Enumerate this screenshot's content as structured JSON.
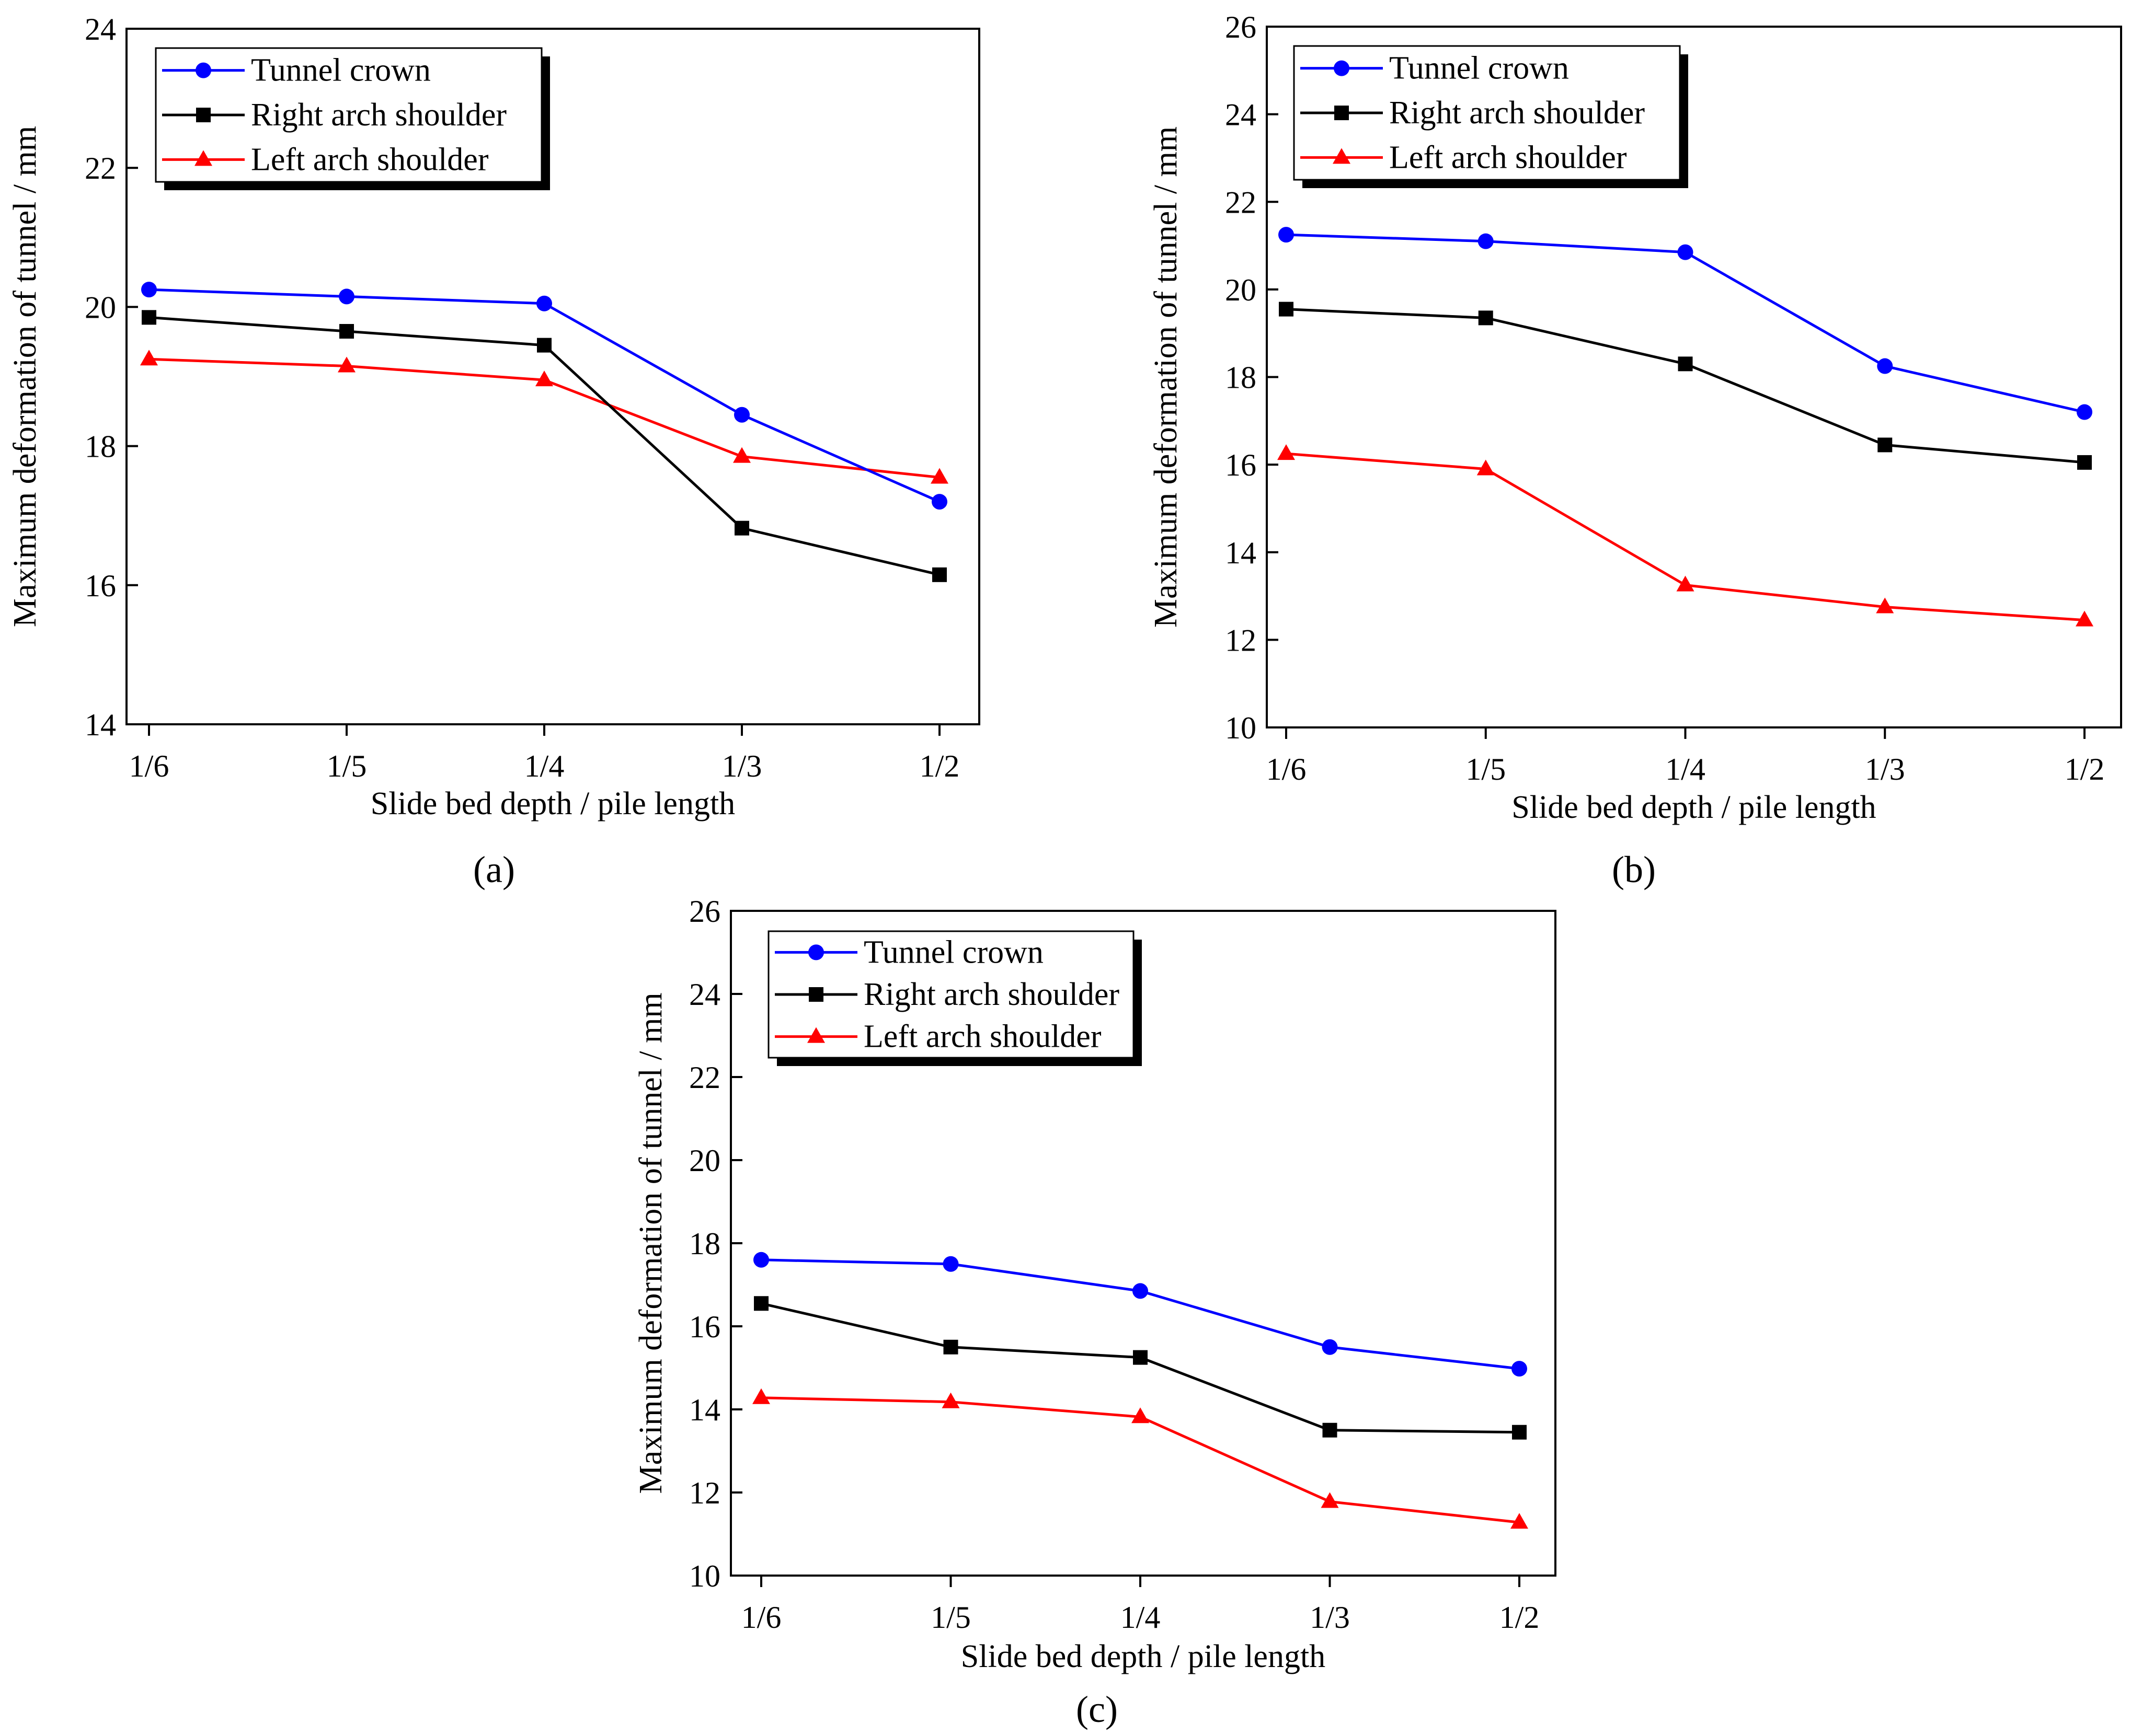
{
  "chart_data": [
    {
      "type": "line",
      "panel": "a",
      "xlabel": "Slide bed depth / pile length",
      "ylabel": "Maximum deformation of tunnel / mm",
      "categories": [
        "1/6",
        "1/5",
        "1/4",
        "1/3",
        "1/2"
      ],
      "ylim": [
        14,
        24
      ],
      "yticks": [
        14,
        16,
        18,
        20,
        22,
        24
      ],
      "legend_position": "top-left",
      "series": [
        {
          "name": "Tunnel crown",
          "color": "#0000ff",
          "marker": "circle",
          "values": [
            20.25,
            20.15,
            20.05,
            18.45,
            17.2
          ]
        },
        {
          "name": "Right arch shoulder",
          "color": "#000000",
          "marker": "square",
          "values": [
            19.85,
            19.65,
            19.45,
            16.82,
            16.15
          ]
        },
        {
          "name": "Left arch shoulder",
          "color": "#ff0000",
          "marker": "triangle",
          "values": [
            19.25,
            19.15,
            18.95,
            17.85,
            17.55
          ]
        }
      ]
    },
    {
      "type": "line",
      "panel": "b",
      "xlabel": "Slide bed depth / pile length",
      "ylabel": "Maximum deformation of tunnel / mm",
      "categories": [
        "1/6",
        "1/5",
        "1/4",
        "1/3",
        "1/2"
      ],
      "ylim": [
        10,
        26
      ],
      "yticks": [
        10,
        12,
        14,
        16,
        18,
        20,
        22,
        24,
        26
      ],
      "legend_position": "top-left",
      "series": [
        {
          "name": "Tunnel crown",
          "color": "#0000ff",
          "marker": "circle",
          "values": [
            21.25,
            21.1,
            20.85,
            18.25,
            17.2
          ]
        },
        {
          "name": "Right arch shoulder",
          "color": "#000000",
          "marker": "square",
          "values": [
            19.55,
            19.35,
            18.3,
            16.45,
            16.05
          ]
        },
        {
          "name": "Left arch shoulder",
          "color": "#ff0000",
          "marker": "triangle",
          "values": [
            16.25,
            15.9,
            13.25,
            12.75,
            12.45
          ]
        }
      ]
    },
    {
      "type": "line",
      "panel": "c",
      "xlabel": "Slide bed depth / pile length",
      "ylabel": "Maximum deformation of tunnel / mm",
      "categories": [
        "1/6",
        "1/5",
        "1/4",
        "1/3",
        "1/2"
      ],
      "ylim": [
        10,
        26
      ],
      "yticks": [
        10,
        12,
        14,
        16,
        18,
        20,
        22,
        24,
        26
      ],
      "legend_position": "top-left",
      "series": [
        {
          "name": "Tunnel crown",
          "color": "#0000ff",
          "marker": "circle",
          "values": [
            17.6,
            17.5,
            16.85,
            15.5,
            14.98
          ]
        },
        {
          "name": "Right arch shoulder",
          "color": "#000000",
          "marker": "square",
          "values": [
            16.55,
            15.5,
            15.25,
            13.5,
            13.45
          ]
        },
        {
          "name": "Left arch shoulder",
          "color": "#ff0000",
          "marker": "triangle",
          "values": [
            14.28,
            14.18,
            13.82,
            11.78,
            11.28
          ]
        }
      ]
    }
  ],
  "panel_labels": [
    "(a)",
    "(b)",
    "(c)"
  ]
}
